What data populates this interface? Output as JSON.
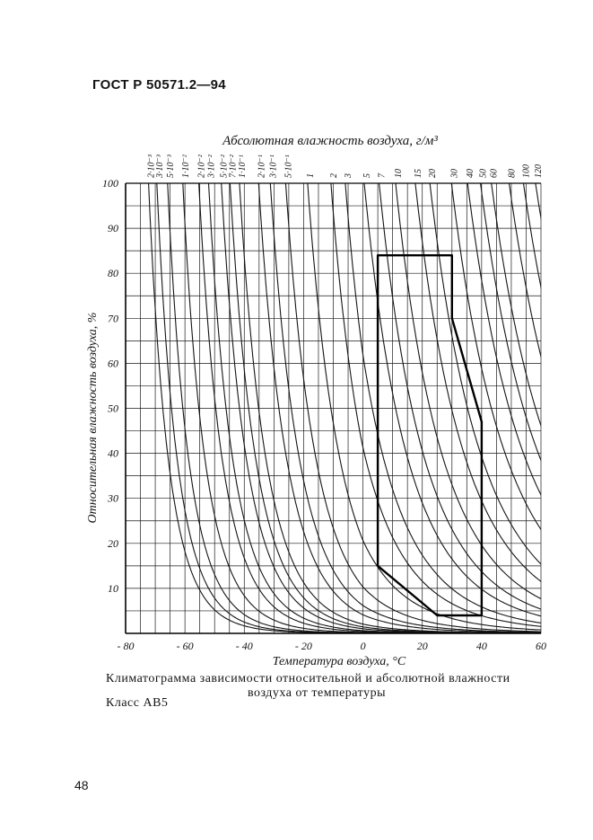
{
  "document": {
    "code": "ГОСТ Р 50571.2—94",
    "caption_line1": "Климатограмма зависимости относительной и абсолютной влажности",
    "caption_line2": "воздуха от температуры",
    "class_label": "Класс АВ5",
    "page_number": "48"
  },
  "chart_data": {
    "type": "line",
    "top_axis_label": "Абсолютная влажность воздуха, г/м³",
    "top_tick_labels": [
      "2·10⁻³",
      "3·10⁻³",
      "5·10⁻³",
      "1·10⁻²",
      "2·10⁻²",
      "3·10⁻²",
      "5·10⁻²",
      "7·10⁻²",
      "1·10⁻¹",
      "2·10⁻¹",
      "3·10⁻¹",
      "5·10⁻¹",
      "1",
      "2",
      "3",
      "5",
      "7",
      "10",
      "15",
      "20",
      "30",
      "40",
      "50",
      "60",
      "80",
      "100",
      "120"
    ],
    "xlabel": "Температура воздуха, °C",
    "ylabel": "Относительная влажность воздуха, %",
    "xlim": [
      -80,
      60
    ],
    "ylim": [
      0,
      100
    ],
    "x_ticks": [
      -80,
      -60,
      -40,
      -20,
      0,
      20,
      40,
      60
    ],
    "y_ticks": [
      10,
      20,
      30,
      40,
      50,
      60,
      70,
      80,
      90,
      100
    ],
    "grid": true,
    "absolute_humidity_isolines_g_m3": [
      0.002,
      0.003,
      0.005,
      0.01,
      0.02,
      0.03,
      0.05,
      0.07,
      0.1,
      0.2,
      0.3,
      0.5,
      1,
      2,
      3,
      5,
      7,
      10,
      15,
      20,
      30,
      40,
      50,
      60,
      80,
      100,
      120
    ],
    "class_boundary": {
      "name": "АВ5",
      "x": [
        5,
        5,
        30,
        30,
        40,
        40,
        25,
        5,
        5
      ],
      "y": [
        15,
        84,
        84,
        70,
        47,
        4,
        4,
        15,
        15
      ]
    }
  }
}
